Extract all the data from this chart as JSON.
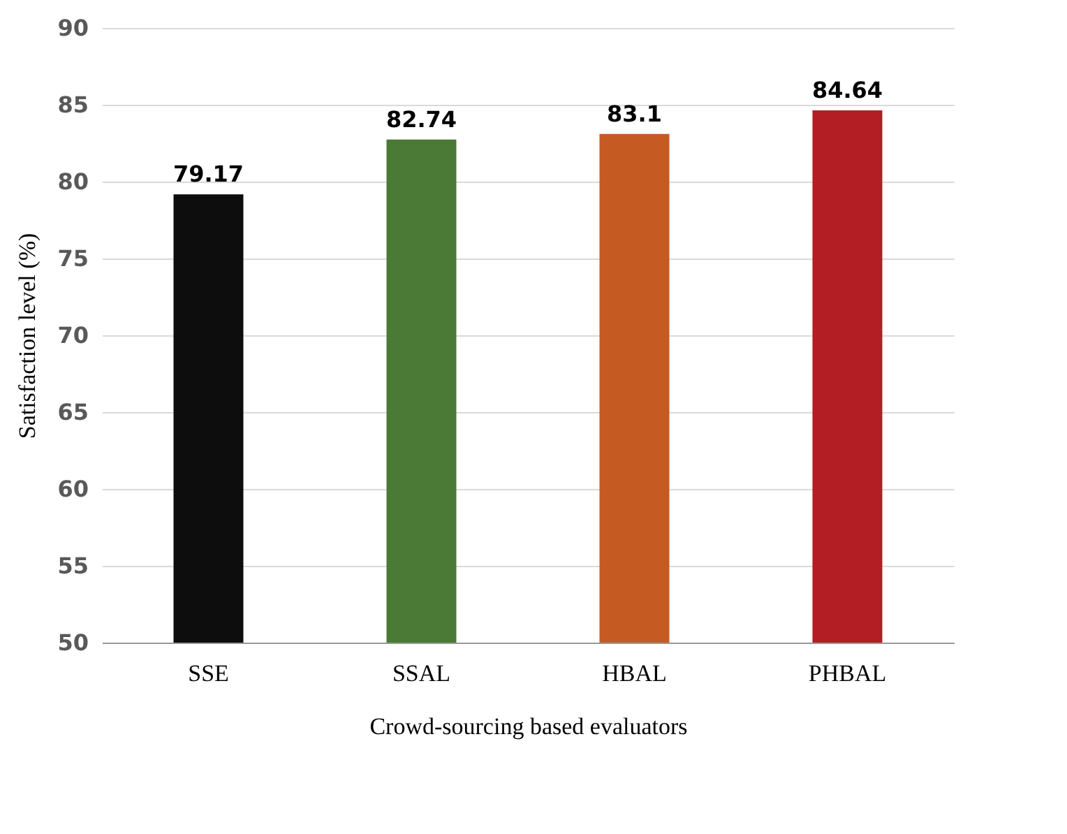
{
  "chart_data": {
    "type": "bar",
    "xlabel": "Crowd-sourcing based evaluators",
    "ylabel": "Satisfaction level (%)",
    "categories": [
      "SSE",
      "SSAL",
      "HBAL",
      "PHBAL"
    ],
    "values": [
      79.17,
      82.74,
      83.1,
      84.64
    ],
    "colors": [
      "#0d0d0d",
      "#4a7a35",
      "#c55a23",
      "#b21e23"
    ],
    "ylim": [
      50,
      90
    ],
    "yticks": [
      50,
      55,
      60,
      65,
      70,
      75,
      80,
      85,
      90
    ],
    "grid": "y",
    "data_labels": true
  }
}
